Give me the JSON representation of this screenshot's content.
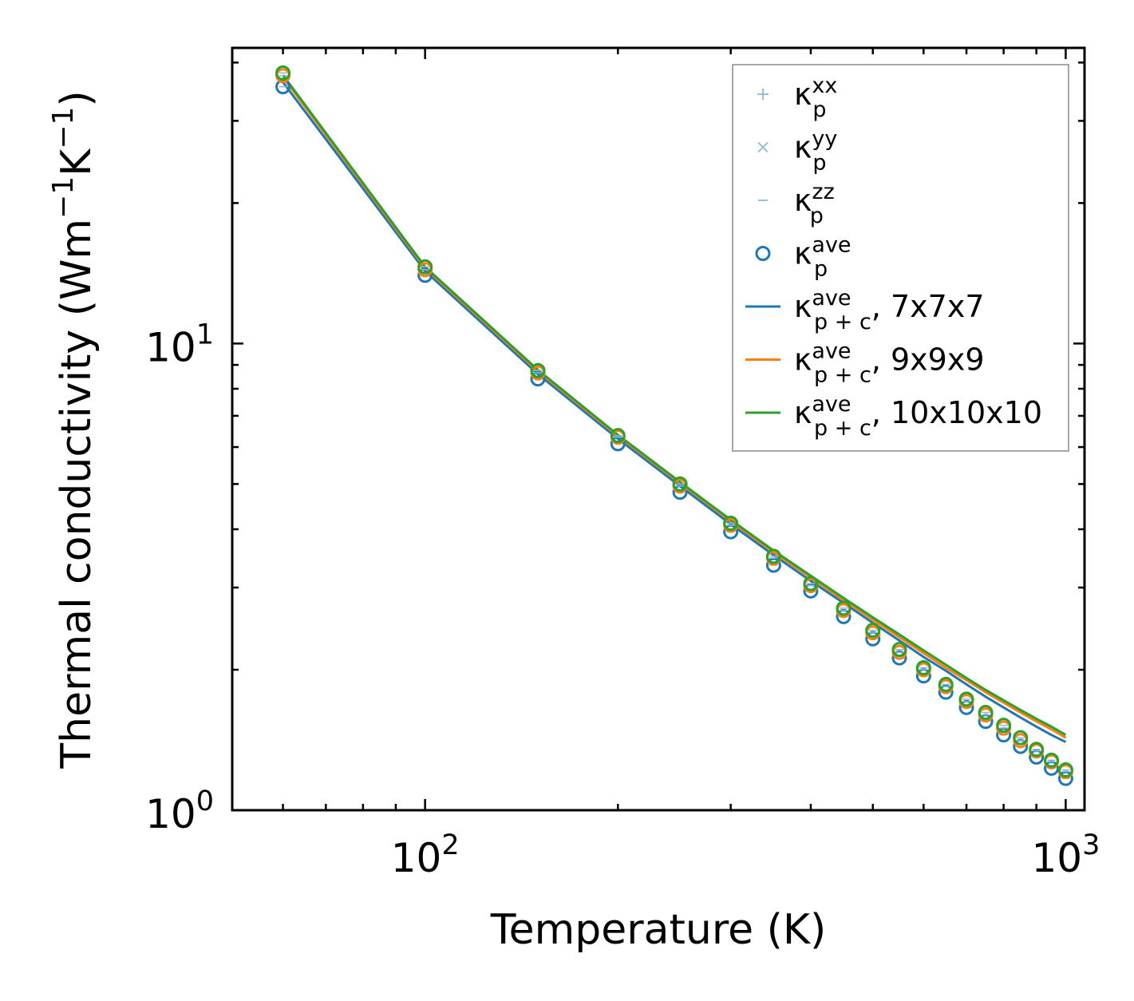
{
  "chart_data": {
    "type": "line",
    "title": "",
    "xlabel": "Temperature (K)",
    "ylabel": "Thermal conductivity (Wm",
    "ylabel_sup1": "−1",
    "ylabel_mid": "K",
    "ylabel_sup2": "−1",
    "ylabel_end": ")",
    "xscale": "log",
    "yscale": "log",
    "xlim": [
      50,
      1070
    ],
    "ylim": [
      1,
      43
    ],
    "grid": false,
    "legend_position": "top-right",
    "x_ticks": [
      {
        "value": 100,
        "base": "10",
        "exp": "2"
      },
      {
        "value": 1000,
        "base": "10",
        "exp": "3"
      }
    ],
    "y_ticks": [
      {
        "value": 1,
        "base": "10",
        "exp": "0"
      },
      {
        "value": 10,
        "base": "10",
        "exp": "1"
      }
    ],
    "x": [
      60,
      100,
      150,
      200,
      250,
      300,
      350,
      400,
      450,
      500,
      550,
      600,
      650,
      700,
      750,
      800,
      850,
      900,
      950,
      1000
    ],
    "series": [
      {
        "name": "κ_p^ave (7x7x7)",
        "kind": "points",
        "marker": "circle",
        "color": "#1f77b4",
        "values": [
          35.5,
          14.0,
          8.4,
          6.1,
          4.8,
          3.95,
          3.35,
          2.95,
          2.6,
          2.33,
          2.12,
          1.94,
          1.79,
          1.66,
          1.55,
          1.45,
          1.37,
          1.3,
          1.23,
          1.17
        ]
      },
      {
        "name": "κ_p^ave (9x9x9)",
        "kind": "points",
        "marker": "circle",
        "color": "#ff7f0e",
        "values": [
          37.5,
          14.4,
          8.65,
          6.3,
          4.95,
          4.08,
          3.47,
          3.03,
          2.68,
          2.4,
          2.18,
          2.0,
          1.84,
          1.71,
          1.6,
          1.5,
          1.41,
          1.34,
          1.27,
          1.21
        ]
      },
      {
        "name": "κ_p^ave (10x10x10)",
        "kind": "points",
        "marker": "circle",
        "color": "#2ca02c",
        "values": [
          38.0,
          14.6,
          8.75,
          6.35,
          5.0,
          4.12,
          3.5,
          3.06,
          2.71,
          2.43,
          2.21,
          2.02,
          1.86,
          1.73,
          1.62,
          1.52,
          1.43,
          1.35,
          1.28,
          1.22
        ]
      },
      {
        "name": "κ_p+c^ave, 7x7x7",
        "kind": "line",
        "color": "#1f77b4",
        "values": [
          36.3,
          14.3,
          8.6,
          6.25,
          4.95,
          4.1,
          3.52,
          3.1,
          2.78,
          2.52,
          2.31,
          2.13,
          1.99,
          1.86,
          1.75,
          1.66,
          1.58,
          1.51,
          1.45,
          1.4
        ]
      },
      {
        "name": "κ_p+c^ave, 9x9x9",
        "kind": "line",
        "color": "#ff7f0e",
        "values": [
          37.2,
          14.5,
          8.72,
          6.33,
          5.02,
          4.16,
          3.57,
          3.15,
          2.82,
          2.56,
          2.35,
          2.17,
          2.02,
          1.9,
          1.79,
          1.7,
          1.62,
          1.55,
          1.49,
          1.43
        ]
      },
      {
        "name": "κ_p+c^ave, 10x10x10",
        "kind": "line",
        "color": "#2ca02c",
        "values": [
          37.6,
          14.6,
          8.78,
          6.37,
          5.05,
          4.19,
          3.6,
          3.18,
          2.85,
          2.59,
          2.38,
          2.2,
          2.05,
          1.92,
          1.81,
          1.72,
          1.64,
          1.57,
          1.51,
          1.45
        ]
      }
    ],
    "legend": [
      {
        "base": "κ",
        "sub": "p",
        "sup": "xx",
        "suffix": "",
        "marker": "plus",
        "color": "#8cb8db"
      },
      {
        "base": "κ",
        "sub": "p",
        "sup": "yy",
        "suffix": "",
        "marker": "cross",
        "color": "#8cb8db"
      },
      {
        "base": "κ",
        "sub": "p",
        "sup": "zz",
        "suffix": "",
        "marker": "dash",
        "color": "#8cb8db"
      },
      {
        "base": "κ",
        "sub": "p",
        "sup": "ave",
        "suffix": "",
        "marker": "circle",
        "color": "#1f77b4"
      },
      {
        "base": "κ",
        "sub": "p + c",
        "sup": "ave",
        "suffix": ", 7x7x7",
        "marker": "line",
        "color": "#1f77b4"
      },
      {
        "base": "κ",
        "sub": "p + c",
        "sup": "ave",
        "suffix": ", 9x9x9",
        "marker": "line",
        "color": "#ff7f0e"
      },
      {
        "base": "κ",
        "sub": "p + c",
        "sup": "ave",
        "suffix": ", 10x10x10",
        "marker": "line",
        "color": "#2ca02c"
      }
    ]
  }
}
